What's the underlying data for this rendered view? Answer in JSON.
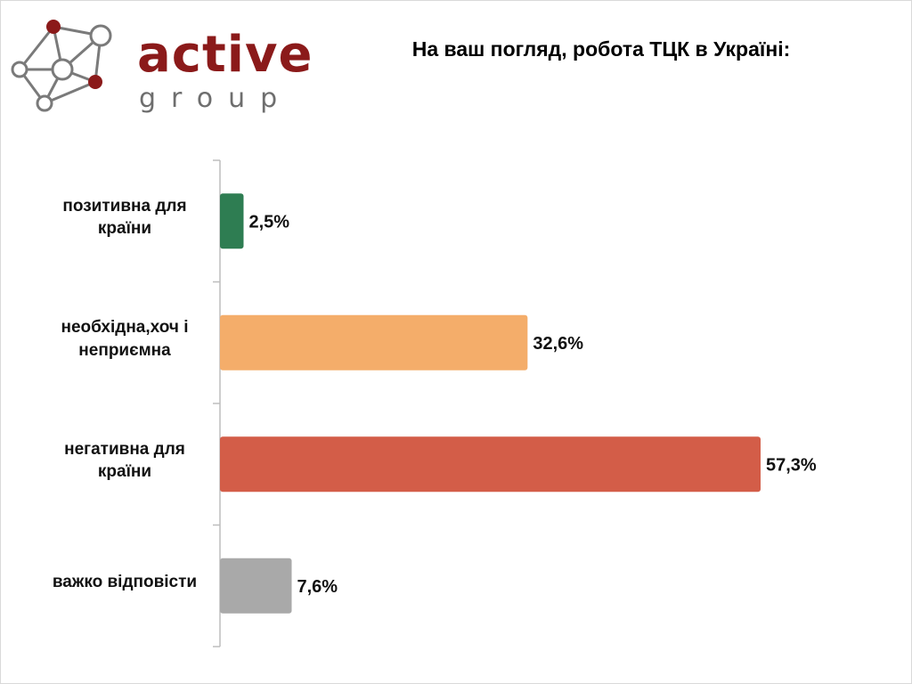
{
  "brand": {
    "name": "active",
    "sub": "group"
  },
  "title": "На ваш погляд, робота ТЦК в Україні:",
  "chart_data": {
    "type": "bar",
    "orientation": "horizontal",
    "title": "На ваш погляд, робота ТЦК в Україні:",
    "categories": [
      "позитивна для країни",
      "необхідна,хоч і неприємна",
      "негативна для країни",
      "важко відповісти"
    ],
    "values": [
      2.5,
      32.6,
      57.3,
      7.6
    ],
    "data_labels": [
      "2,5%",
      "32,6%",
      "57,3%",
      "7,6%"
    ],
    "colors": [
      "#2e7d52",
      "#f4ad6a",
      "#d35d48",
      "#a9a9a9"
    ],
    "xlabel": "",
    "ylabel": "",
    "xlim": [
      0,
      57.3
    ],
    "grid": false,
    "legend": "none"
  }
}
